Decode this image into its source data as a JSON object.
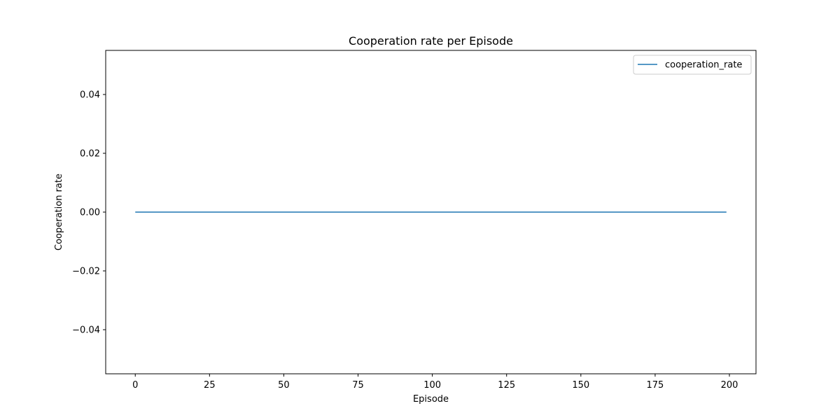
{
  "chart_data": {
    "type": "line",
    "title": "Cooperation rate per Episode",
    "xlabel": "Episode",
    "ylabel": "Cooperation rate",
    "xlim": [
      -9.95,
      208.95
    ],
    "ylim": [
      -0.055,
      0.055
    ],
    "xticks": [
      0,
      25,
      50,
      75,
      100,
      125,
      150,
      175,
      200
    ],
    "xtick_labels": [
      "0",
      "25",
      "50",
      "75",
      "100",
      "125",
      "150",
      "175",
      "200"
    ],
    "yticks": [
      -0.04,
      -0.02,
      0.0,
      0.02,
      0.04
    ],
    "ytick_labels": [
      "−0.04",
      "−0.02",
      "0.00",
      "0.02",
      "0.04"
    ],
    "grid": false,
    "legend_position": "top-right",
    "series": [
      {
        "name": "cooperation_rate",
        "color": "#1f77b4",
        "x_start": 0,
        "x_end": 199,
        "constant_value": 0.0
      }
    ]
  }
}
